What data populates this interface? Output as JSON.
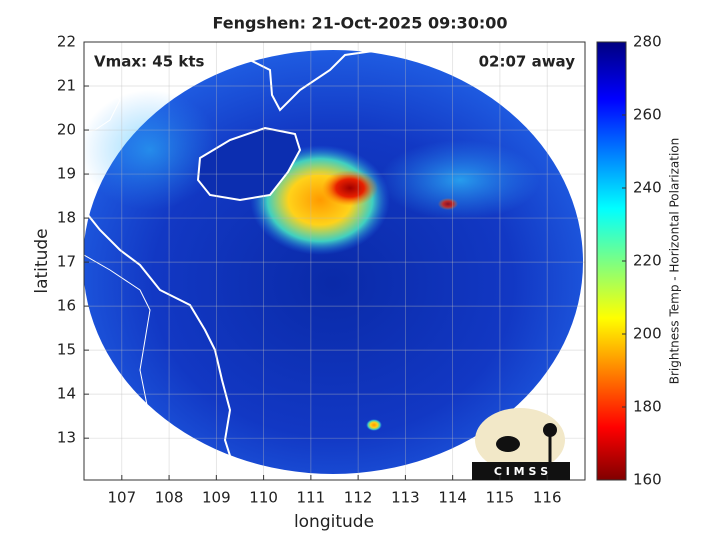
{
  "chart_data": {
    "type": "map",
    "title": "Fengshen: 21-Oct-2025 09:30:00",
    "annotations": [
      "Vmax: 45 kts",
      "02:07 away"
    ],
    "logo": "C I M S S",
    "xlabel": "longitude",
    "ylabel": "latitude",
    "xlim": [
      106.2,
      116.8
    ],
    "ylim": [
      12.05,
      22
    ],
    "xticks": [
      107,
      108,
      109,
      110,
      111,
      112,
      113,
      114,
      115,
      116
    ],
    "yticks": [
      13,
      14,
      15,
      16,
      17,
      18,
      19,
      20,
      21,
      22
    ],
    "grid": true,
    "colorbar": {
      "label": "Brightness Temp - Horizontal Polarization",
      "lim": [
        160,
        280
      ],
      "ticks": [
        160,
        180,
        200,
        220,
        240,
        260,
        280
      ]
    }
  }
}
